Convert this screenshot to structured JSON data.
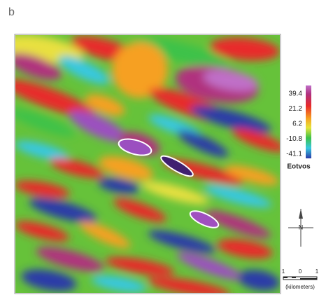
{
  "panel_label": "b",
  "colorbar": {
    "ticks": [
      "39.4",
      "21.2",
      "6.2",
      "-10.8",
      "-41.1"
    ],
    "label": "Eotvos"
  },
  "north_arrow": {
    "label": "N"
  },
  "scale_bar": {
    "ticks": [
      "1",
      "0",
      "1"
    ],
    "unit": "(kilometers)"
  }
}
